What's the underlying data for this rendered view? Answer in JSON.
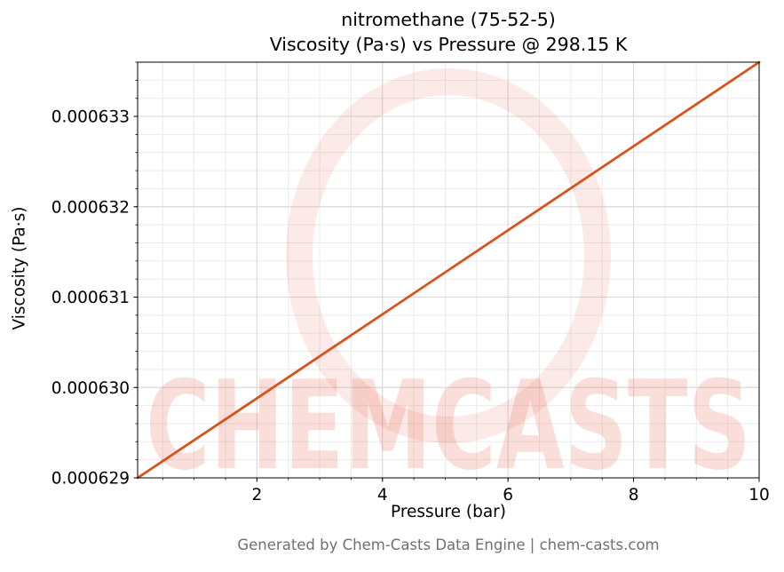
{
  "chart_data": {
    "type": "line",
    "compound": "nitromethane",
    "cas": "75-52-5",
    "temperature": "298.15 K",
    "title_line1": "nitromethane (75-52-5)",
    "title_line2": "Viscosity (Pa·s) vs Pressure @ 298.15 K",
    "xlabel": "Pressure (bar)",
    "ylabel": "Viscosity (Pa·s)",
    "xlim": [
      0.1,
      10
    ],
    "ylim": [
      0.000629,
      0.0006336
    ],
    "x_ticks": [
      2,
      4,
      6,
      8,
      10
    ],
    "x_tick_labels": [
      "2",
      "4",
      "6",
      "8",
      "10"
    ],
    "y_ticks": [
      0.000629,
      0.00063,
      0.000631,
      0.000632,
      0.000633
    ],
    "y_tick_labels": [
      "0.000629",
      "0.000630",
      "0.000631",
      "0.000632",
      "0.000633"
    ],
    "x_minor_step": 0.5,
    "y_minor_step": 2e-07,
    "grid": true,
    "grid_major_color": "#d7d7d7",
    "grid_minor_color": "#ebebeb",
    "line_color": "#d9521c",
    "line_width": 2.8,
    "series": [
      {
        "name": "viscosity",
        "x": [
          0.1,
          2,
          4,
          6,
          8,
          10
        ],
        "y": [
          0.000629,
          0.00062988,
          0.00063081,
          0.00063174,
          0.00063267,
          0.0006336
        ]
      }
    ]
  },
  "watermark": {
    "text": "CHEMCASTS",
    "color": "#e8604a",
    "text_opacity": 0.2,
    "ring_opacity": 0.13
  },
  "footer": {
    "text": "Generated by Chem-Casts Data Engine | chem-casts.com"
  }
}
